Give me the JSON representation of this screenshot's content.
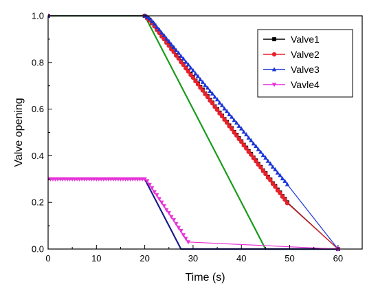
{
  "chart_data": {
    "type": "line",
    "title": "",
    "xlabel": "Time (s)",
    "ylabel": "Valve opening",
    "xlim": [
      0,
      65
    ],
    "ylim": [
      0,
      1.0
    ],
    "x_ticks": [
      0,
      10,
      20,
      30,
      40,
      50,
      60
    ],
    "x_tick_labels": [
      "0",
      "10",
      "20",
      "30",
      "40",
      "50",
      "60"
    ],
    "y_ticks": [
      0.0,
      0.2,
      0.4,
      0.6,
      0.8,
      1.0
    ],
    "y_tick_labels": [
      "0.0",
      "0.2",
      "0.4",
      "0.6",
      "0.8",
      "1.0"
    ],
    "grid": false,
    "legend_position": "top-right",
    "marked_series": [
      {
        "name": "Valve1",
        "color": "#000000",
        "marker": "square",
        "x": [
          0,
          20,
          20.5,
          21,
          21.5,
          22,
          22.5,
          23,
          23.5,
          24,
          24.5,
          25,
          25.5,
          26,
          26.5,
          27,
          27.5,
          28,
          28.5,
          29,
          29.5,
          30,
          30.5,
          31,
          31.5,
          32,
          32.5,
          33,
          33.5,
          34,
          34.5,
          35,
          35.5,
          36,
          36.5,
          37,
          37.5,
          38,
          38.5,
          39,
          39.5,
          40,
          40.5,
          41,
          41.5,
          42,
          42.5,
          43,
          43.5,
          44,
          44.5,
          45,
          45.5,
          46,
          46.5,
          47,
          47.5,
          48,
          48.5,
          49,
          49.5,
          60
        ],
        "y": [
          1.0,
          1.0,
          0.992,
          0.983,
          0.97,
          0.958,
          0.942,
          0.93,
          0.915,
          0.903,
          0.887,
          0.875,
          0.86,
          0.848,
          0.832,
          0.82,
          0.805,
          0.793,
          0.777,
          0.765,
          0.75,
          0.738,
          0.722,
          0.71,
          0.695,
          0.683,
          0.667,
          0.655,
          0.64,
          0.628,
          0.612,
          0.6,
          0.585,
          0.572,
          0.557,
          0.545,
          0.53,
          0.518,
          0.502,
          0.49,
          0.475,
          0.462,
          0.447,
          0.435,
          0.42,
          0.408,
          0.392,
          0.38,
          0.365,
          0.352,
          0.337,
          0.325,
          0.31,
          0.298,
          0.282,
          0.27,
          0.255,
          0.243,
          0.227,
          0.215,
          0.2,
          0.0
        ]
      },
      {
        "name": "Valve2",
        "color": "#e8202a",
        "marker": "circle",
        "x": [
          0,
          20,
          20.5,
          21,
          21.5,
          22,
          22.5,
          23,
          23.5,
          24,
          24.5,
          25,
          25.5,
          26,
          26.5,
          27,
          27.5,
          28,
          28.5,
          29,
          29.5,
          30,
          30.5,
          31,
          31.5,
          32,
          32.5,
          33,
          33.5,
          34,
          34.5,
          35,
          35.5,
          36,
          36.5,
          37,
          37.5,
          38,
          38.5,
          39,
          39.5,
          40,
          40.5,
          41,
          41.5,
          42,
          42.5,
          43,
          43.5,
          44,
          44.5,
          45,
          45.5,
          46,
          46.5,
          47,
          47.5,
          48,
          48.5,
          49,
          49.5,
          60
        ],
        "y": [
          1.0,
          1.0,
          0.99,
          0.981,
          0.968,
          0.955,
          0.94,
          0.927,
          0.912,
          0.9,
          0.885,
          0.872,
          0.857,
          0.845,
          0.83,
          0.817,
          0.802,
          0.79,
          0.775,
          0.762,
          0.747,
          0.735,
          0.72,
          0.707,
          0.692,
          0.68,
          0.665,
          0.652,
          0.637,
          0.625,
          0.61,
          0.597,
          0.582,
          0.57,
          0.555,
          0.542,
          0.527,
          0.515,
          0.5,
          0.487,
          0.472,
          0.46,
          0.445,
          0.432,
          0.417,
          0.405,
          0.39,
          0.377,
          0.362,
          0.35,
          0.335,
          0.322,
          0.307,
          0.295,
          0.28,
          0.267,
          0.252,
          0.24,
          0.225,
          0.212,
          0.197,
          0.0
        ]
      },
      {
        "name": "Valve3",
        "color": "#1a35d6",
        "marker": "triangle-up",
        "x": [
          0,
          20,
          20.5,
          21,
          21.5,
          22,
          22.5,
          23,
          23.5,
          24,
          24.5,
          25,
          25.5,
          26,
          26.5,
          27,
          27.5,
          28,
          28.5,
          29,
          29.5,
          30,
          30.5,
          31,
          31.5,
          32,
          32.5,
          33,
          33.5,
          34,
          34.5,
          35,
          35.5,
          36,
          36.5,
          37,
          37.5,
          38,
          38.5,
          39,
          39.5,
          40,
          40.5,
          41,
          41.5,
          42,
          42.5,
          43,
          43.5,
          44,
          44.5,
          45,
          45.5,
          46,
          46.5,
          47,
          47.5,
          48,
          48.5,
          49,
          49.5,
          60
        ],
        "y": [
          1.0,
          1.0,
          0.995,
          0.988,
          0.977,
          0.966,
          0.952,
          0.941,
          0.927,
          0.916,
          0.902,
          0.891,
          0.877,
          0.866,
          0.852,
          0.841,
          0.827,
          0.816,
          0.802,
          0.791,
          0.777,
          0.766,
          0.752,
          0.741,
          0.727,
          0.716,
          0.702,
          0.691,
          0.677,
          0.666,
          0.652,
          0.641,
          0.627,
          0.616,
          0.602,
          0.591,
          0.577,
          0.566,
          0.552,
          0.541,
          0.527,
          0.516,
          0.502,
          0.491,
          0.477,
          0.466,
          0.452,
          0.441,
          0.427,
          0.416,
          0.402,
          0.391,
          0.377,
          0.366,
          0.352,
          0.341,
          0.327,
          0.316,
          0.302,
          0.291,
          0.277,
          0.0
        ]
      },
      {
        "name": "Vavle4",
        "color": "#e832d8",
        "marker": "triangle-down",
        "x": [
          0,
          0.5,
          1,
          1.5,
          2,
          2.5,
          3,
          3.5,
          4,
          4.5,
          5,
          5.5,
          6,
          6.5,
          7,
          7.5,
          8,
          8.5,
          9,
          9.5,
          10,
          10.5,
          11,
          11.5,
          12,
          12.5,
          13,
          13.5,
          14,
          14.5,
          15,
          15.5,
          16,
          16.5,
          17,
          17.5,
          18,
          18.5,
          19,
          19.5,
          20,
          20.5,
          21,
          21.5,
          22,
          22.5,
          23,
          23.5,
          24,
          24.5,
          25,
          25.5,
          26,
          26.5,
          27,
          27.5,
          28,
          28.5,
          29,
          60
        ],
        "y": [
          0.3,
          0.3,
          0.3,
          0.3,
          0.3,
          0.3,
          0.3,
          0.3,
          0.3,
          0.3,
          0.3,
          0.3,
          0.3,
          0.3,
          0.3,
          0.3,
          0.3,
          0.3,
          0.3,
          0.3,
          0.3,
          0.3,
          0.3,
          0.3,
          0.3,
          0.3,
          0.3,
          0.3,
          0.3,
          0.3,
          0.3,
          0.3,
          0.3,
          0.3,
          0.3,
          0.3,
          0.3,
          0.3,
          0.3,
          0.3,
          0.3,
          0.292,
          0.276,
          0.262,
          0.245,
          0.232,
          0.215,
          0.2,
          0.185,
          0.168,
          0.155,
          0.138,
          0.125,
          0.108,
          0.092,
          0.078,
          0.06,
          0.045,
          0.03,
          0.0
        ]
      }
    ],
    "extra_series": [
      {
        "color": "#1a9c1a",
        "x": [
          0,
          20,
          45,
          60
        ],
        "y": [
          1.0,
          1.0,
          0.0,
          0.0
        ]
      },
      {
        "color": "#1a1a8c",
        "x": [
          0,
          20,
          27.5,
          60
        ],
        "y": [
          0.3,
          0.3,
          0.0,
          0.0
        ]
      }
    ]
  }
}
